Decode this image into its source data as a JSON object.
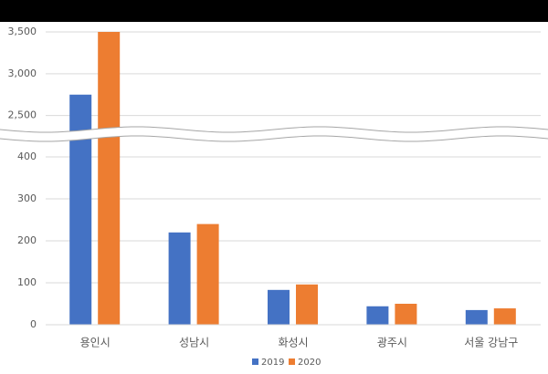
{
  "chart_data": {
    "type": "bar",
    "categories": [
      "용인시",
      "성남시",
      "화성시",
      "광주시",
      "서울 강남구"
    ],
    "series": [
      {
        "name": "2019",
        "color": "#4472c4",
        "values": [
          2750,
          220,
          83,
          44,
          35
        ]
      },
      {
        "name": "2020",
        "color": "#ed7d31",
        "values": [
          3500,
          240,
          96,
          50,
          39
        ]
      }
    ],
    "ylim": [
      0,
      3500
    ],
    "axis_break": [
      450,
      2300
    ],
    "yticks": [
      0,
      100,
      200,
      300,
      400,
      {
        "value": 2500,
        "label": "2,500"
      },
      {
        "value": 3000,
        "label": "3,000"
      },
      {
        "value": 3500,
        "label": "3,500"
      }
    ],
    "grid": true,
    "legend": "bottom"
  }
}
